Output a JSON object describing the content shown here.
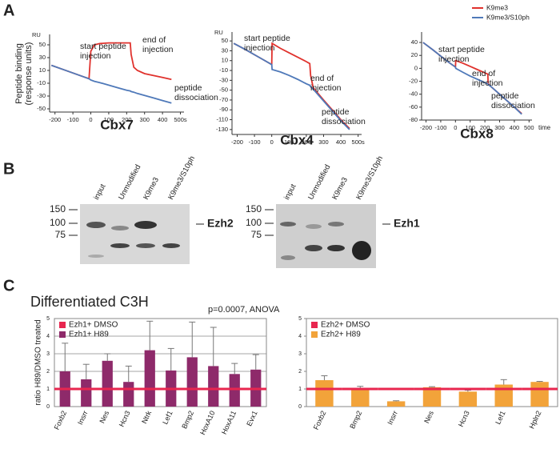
{
  "panels": {
    "a": "A",
    "b": "B",
    "c": "C"
  },
  "chart_data": [
    {
      "type": "line",
      "title": "Cbx7",
      "ylabel": "Peptide binding (response units)",
      "y_unit": "RU",
      "x": [
        -220,
        -150,
        -100,
        -50,
        -10,
        0,
        20,
        50,
        100,
        150,
        200,
        220,
        225,
        240,
        260,
        300,
        350,
        400,
        450
      ],
      "series": [
        {
          "color": "#e0322d",
          "values": [
            18,
            11,
            6,
            1,
            -3,
            40,
            50,
            52,
            53,
            53,
            53,
            53,
            35,
            15,
            10,
            5,
            2,
            -1,
            -4
          ]
        },
        {
          "color": "#4f79b9",
          "values": [
            18,
            11,
            6,
            1,
            -3,
            -5,
            -7,
            -9,
            -13,
            -17,
            -21,
            -22,
            -23,
            -24,
            -26,
            -29,
            -33,
            -37,
            -41
          ]
        }
      ],
      "xlim": [
        -230,
        520
      ],
      "xticks": [
        -200,
        -100,
        0,
        100,
        200,
        300,
        400,
        {
          "value": 500,
          "label": "500s"
        }
      ],
      "ylim": [
        -55,
        60
      ],
      "yticks": [
        50,
        30,
        10,
        -10,
        -30,
        -50
      ],
      "annotations": [
        "start peptide injection",
        "end of injection",
        "peptide dissociation"
      ]
    },
    {
      "type": "line",
      "title": "Cbx4",
      "y_unit": "RU",
      "x": [
        -220,
        -150,
        -100,
        -50,
        0,
        2,
        50,
        100,
        150,
        200,
        220,
        225,
        240,
        300,
        350,
        400,
        450
      ],
      "series": [
        {
          "color": "#e0322d",
          "values": [
            45,
            32,
            22,
            12,
            2,
            45,
            35,
            26,
            17,
            8,
            4,
            -20,
            -45,
            -70,
            -90,
            -110,
            -128
          ]
        },
        {
          "color": "#4f79b9",
          "values": [
            45,
            32,
            22,
            12,
            2,
            -8,
            -13,
            -20,
            -28,
            -37,
            -40,
            -43,
            -48,
            -72,
            -92,
            -112,
            -130
          ]
        }
      ],
      "xlim": [
        -230,
        520
      ],
      "xticks": [
        -200,
        -100,
        0,
        100,
        200,
        300,
        400,
        {
          "value": 500,
          "label": "500s"
        }
      ],
      "ylim": [
        -140,
        60
      ],
      "yticks": [
        50,
        30,
        10,
        -10,
        -30,
        -50,
        -70,
        -90,
        -110,
        -130
      ],
      "annotations": [
        "start peptide injection",
        "end of injection",
        "peptide dissociation"
      ]
    },
    {
      "type": "line",
      "title": "Cbx8",
      "xlabel": "time",
      "legend": "upper right",
      "x": [
        -220,
        -150,
        -100,
        -50,
        0,
        2,
        50,
        100,
        150,
        200,
        220,
        222,
        240,
        300,
        350,
        400,
        450
      ],
      "series": [
        {
          "name": "K9me3",
          "color": "#e0322d",
          "values": [
            40,
            28,
            19,
            10,
            2,
            12,
            8,
            3,
            -2,
            -7,
            -9,
            -24,
            -28,
            -40,
            -50,
            -60,
            -70
          ]
        },
        {
          "name": "K9me3/S10ph",
          "color": "#4f79b9",
          "values": [
            40,
            28,
            19,
            10,
            2,
            0,
            -6,
            -12,
            -17,
            -22,
            -24,
            -25,
            -28,
            -40,
            -50,
            -60,
            -71
          ]
        }
      ],
      "xlim": [
        -230,
        520
      ],
      "xticks": [
        -200,
        -100,
        0,
        100,
        200,
        300,
        400,
        500
      ],
      "ylim": [
        -80,
        50
      ],
      "yticks": [
        40,
        20,
        0,
        -20,
        -40,
        -60,
        -80
      ],
      "annotations": [
        "start peptide injection",
        "end of injection",
        "peptide dissociation"
      ]
    },
    {
      "type": "bar",
      "title": "Differentiated C3H",
      "annotation": "p=0.0007, ANOVA",
      "ylabel": "ratio H89/DMSO treated",
      "categories": [
        "Foxb2",
        "Insrr",
        "Nes",
        "Hcn3",
        "Ntrk",
        "Lef1",
        "Bmp2",
        "HoxA10",
        "HoxA11",
        "Evx1"
      ],
      "series": [
        {
          "name": "Ezh1+ DMSO",
          "color": "#e8264f",
          "values": [
            1,
            1,
            1,
            1,
            1,
            1,
            1,
            1,
            1,
            1
          ]
        },
        {
          "name": "Ezh1+ H89",
          "color": "#8e2a6a",
          "values": [
            2.0,
            1.55,
            2.6,
            1.4,
            3.2,
            2.05,
            2.8,
            2.3,
            1.85,
            2.1
          ],
          "errors": [
            1.6,
            0.85,
            0.4,
            0.9,
            1.65,
            1.25,
            2.0,
            2.2,
            0.6,
            0.85
          ]
        }
      ],
      "ylim": [
        0,
        5
      ],
      "yticks": [
        0,
        1,
        2,
        3,
        4,
        5
      ],
      "grid": true,
      "legend": "upper left"
    },
    {
      "type": "bar",
      "categories": [
        "Foxb2",
        "Bmp2",
        "Insrr",
        "Nes",
        "Hcn3",
        "Lef1",
        "Hpln2"
      ],
      "series": [
        {
          "name": "Ezh2+ DMSO",
          "color": "#e8264f",
          "values": [
            1,
            1,
            1,
            1,
            1,
            1,
            1
          ]
        },
        {
          "name": "Ezh2+ H89",
          "color": "#f2a33a",
          "values": [
            1.5,
            1.0,
            0.3,
            1.1,
            0.85,
            1.25,
            1.4
          ],
          "errors": [
            0.25,
            0.15,
            0.03,
            0.03,
            0.08,
            0.28,
            0.03
          ]
        }
      ],
      "ylim": [
        0,
        5
      ],
      "yticks": [
        0,
        1,
        2,
        3,
        4,
        5
      ],
      "grid": false,
      "legend": "upper left"
    }
  ],
  "blots": [
    {
      "lanes": [
        "input",
        "Unmodified",
        "K9me3",
        "K9me3/S10ph"
      ],
      "markers": [
        150,
        100,
        75
      ],
      "protein": "Ezh2"
    },
    {
      "lanes": [
        "input",
        "Unmodified",
        "K9me3",
        "K9me3/S10ph"
      ],
      "markers": [
        150,
        100,
        75
      ],
      "protein": "Ezh1"
    }
  ]
}
